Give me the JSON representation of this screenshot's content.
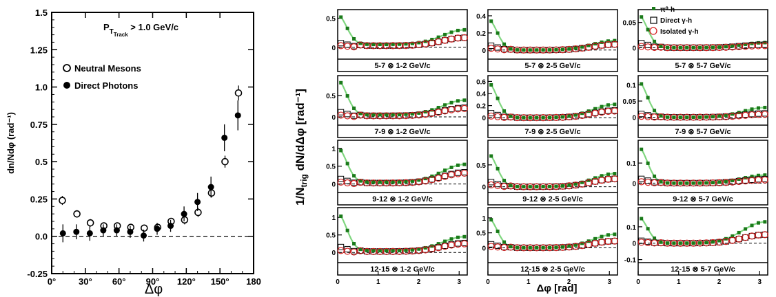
{
  "colors": {
    "axis": "#000000",
    "pi0_marker": "#1a7a1a",
    "fit_curve": "#7fd67f",
    "isolated_marker": "#d42020",
    "direct_marker": "#000000"
  },
  "chart_data": [
    {
      "type": "scatter",
      "title": "",
      "annotation_main": "P",
      "annotation_sub": "T",
      "annotation_subsub": "Track",
      "annotation_rest": " > 1.0 GeV/c",
      "xlabel": "Δφ",
      "ylabel": "dn/Ndφ (rad⁻¹)",
      "xlim": [
        0,
        180
      ],
      "ylim": [
        -0.25,
        1.5
      ],
      "xticks": [
        "0°",
        "30°",
        "60°",
        "90°",
        "120°",
        "150°",
        "180"
      ],
      "yticks": [
        "-0.25",
        "0.0",
        "0.25",
        "0.5",
        "0.75",
        "1.0",
        "1.25",
        "1.5"
      ],
      "legend_position": "upper-left",
      "series": [
        {
          "name": "Neutral Mesons",
          "marker": "open-circle",
          "x": [
            9.5,
            22.5,
            34.5,
            46.5,
            58.5,
            70.5,
            82.5,
            94.5,
            106.5,
            118.5,
            130.5,
            142.5,
            154.5,
            166.5
          ],
          "y": [
            0.24,
            0.15,
            0.09,
            0.07,
            0.07,
            0.06,
            0.055,
            0.06,
            0.1,
            0.11,
            0.16,
            0.29,
            0.5,
            0.96
          ],
          "err": [
            0.03,
            0.025,
            0.025,
            0.02,
            0.02,
            0.02,
            0.02,
            0.02,
            0.02,
            0.03,
            0.03,
            0.03,
            0.04,
            0.05
          ]
        },
        {
          "name": "Direct Photons",
          "marker": "filled-circle",
          "x": [
            10,
            22,
            34,
            46,
            58,
            70,
            82,
            94,
            106,
            118,
            130,
            142,
            154,
            166
          ],
          "y": [
            0.02,
            0.03,
            0.02,
            0.04,
            0.04,
            0.03,
            0.005,
            0.05,
            0.07,
            0.15,
            0.23,
            0.33,
            0.66,
            0.81
          ],
          "err": [
            0.06,
            0.05,
            0.05,
            0.04,
            0.04,
            0.04,
            0.04,
            0.04,
            0.04,
            0.05,
            0.06,
            0.07,
            0.09,
            0.1
          ]
        }
      ]
    },
    {
      "type": "scatter",
      "ylabel": "1/N",
      "ylabel_sub": "trig",
      "ylabel_rest": " dN/dΔφ [rad⁻¹]",
      "xlabel": "Δφ [rad]",
      "xlim": [
        0,
        3.2
      ],
      "xticks": [
        "0",
        "1",
        "2",
        "3"
      ],
      "legend_position": "top-right panel",
      "legend": [
        "π⁰-h",
        "Direct γ-h",
        "Isolated γ-h"
      ],
      "panels": [
        {
          "label": "5-7 ⊗ 1-2 GeV/c",
          "ylim": [
            -0.18,
            0.6
          ],
          "yticks": [
            "0",
            "0.5"
          ],
          "amp": 0.5,
          "away": 0.25,
          "base": 0.05,
          "iso_scale": 0.55,
          "dir_scale": 0.55
        },
        {
          "label": "5-7 ⊗ 2-5 GeV/c",
          "ylim": [
            -0.09,
            0.44
          ],
          "yticks": [
            "0",
            "0.2",
            "0.4"
          ],
          "amp": 0.36,
          "away": 0.11,
          "base": 0.0,
          "iso_scale": 0.6,
          "dir_scale": 0.6
        },
        {
          "label": "5-7 ⊗ 5-7 GeV/c",
          "ylim": [
            -0.02,
            0.07
          ],
          "yticks": [
            "0",
            "0.05"
          ],
          "amp": 0.065,
          "away": 0.01,
          "base": 0.0,
          "iso_scale": 0.4,
          "dir_scale": 0.6
        },
        {
          "label": "7-9 ⊗ 1-2 GeV/c",
          "ylim": [
            -0.16,
            0.9
          ],
          "yticks": [
            "0",
            "0.5"
          ],
          "amp": 0.8,
          "away": 0.34,
          "base": 0.05,
          "iso_scale": 0.5,
          "dir_scale": 0.55
        },
        {
          "label": "7-9 ⊗ 2-5 GeV/c",
          "ylim": [
            -0.1,
            0.65
          ],
          "yticks": [
            "0",
            "0.2",
            "0.4",
            "0.6"
          ],
          "amp": 0.58,
          "away": 0.22,
          "base": 0.0,
          "iso_scale": 0.5,
          "dir_scale": 0.55
        },
        {
          "label": "7-9 ⊗ 5-7 GeV/c",
          "ylim": [
            -0.02,
            0.12
          ],
          "yticks": [
            "0",
            "0.05",
            "0.1"
          ],
          "amp": 0.11,
          "away": 0.03,
          "base": 0.0,
          "iso_scale": 0.3,
          "dir_scale": 0.4
        },
        {
          "label": "9-12 ⊗ 1-2 GeV/c",
          "ylim": [
            -0.2,
            1.15
          ],
          "yticks": [
            "0",
            "0.5",
            "1"
          ],
          "amp": 0.95,
          "away": 0.5,
          "base": 0.05,
          "iso_scale": 0.55,
          "dir_scale": 0.6
        },
        {
          "label": "9-12 ⊗ 2-5 GeV/c",
          "ylim": [
            -0.1,
            1.0
          ],
          "yticks": [
            "0",
            "0.5"
          ],
          "amp": 0.75,
          "away": 0.3,
          "base": 0.0,
          "iso_scale": 0.6,
          "dir_scale": 0.6
        },
        {
          "label": "9-12 ⊗ 5-7 GeV/c",
          "ylim": [
            -0.04,
            0.2
          ],
          "yticks": [
            "0",
            "0.1"
          ],
          "amp": 0.18,
          "away": 0.04,
          "base": 0.0,
          "iso_scale": 0.4,
          "dir_scale": 0.5
        },
        {
          "label": "12-15 ⊗ 1-2 GeV/c",
          "ylim": [
            -0.25,
            1.2
          ],
          "yticks": [
            "0",
            "0.5",
            "1"
          ],
          "amp": 1.05,
          "away": 0.4,
          "base": 0.05,
          "iso_scale": 0.55,
          "dir_scale": 0.6
        },
        {
          "label": "12-15 ⊗ 2-5 GeV/c",
          "ylim": [
            -0.45,
            1.25
          ],
          "yticks": [
            "0",
            "0.5",
            "1"
          ],
          "amp": 1.0,
          "away": 0.45,
          "base": 0.0,
          "iso_scale": 0.5,
          "dir_scale": 0.5
        },
        {
          "label": "12-15 ⊗ 5-7 GeV/c",
          "ylim": [
            -0.11,
            0.2
          ],
          "yticks": [
            "-0.1",
            "0",
            "0.1"
          ],
          "amp": 0.16,
          "away": 0.13,
          "base": 0.0,
          "iso_scale": 0.4,
          "dir_scale": 0.4
        }
      ]
    }
  ]
}
